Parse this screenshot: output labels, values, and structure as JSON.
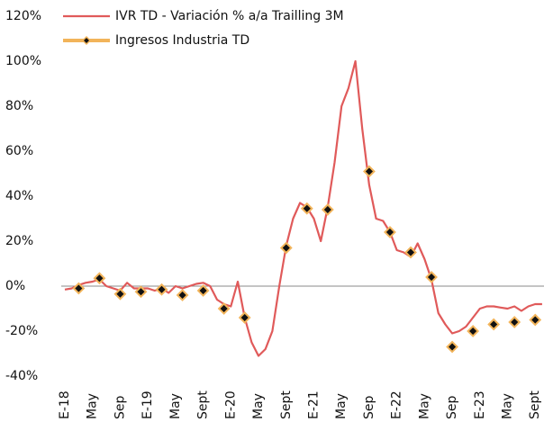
{
  "chart_data": {
    "type": "line",
    "categories": [
      "E-18",
      null,
      null,
      null,
      "May",
      null,
      null,
      null,
      "Sep",
      null,
      null,
      null,
      "E-19",
      null,
      null,
      null,
      "May",
      null,
      null,
      null,
      "Sept",
      null,
      null,
      null,
      "E-20",
      null,
      null,
      null,
      "May",
      null,
      null,
      null,
      "Sept",
      null,
      null,
      null,
      "E-21",
      null,
      null,
      null,
      "May",
      null,
      null,
      null,
      "Sep",
      null,
      null,
      null,
      "E-22",
      null,
      null,
      null,
      "May",
      null,
      null,
      null,
      "Sep",
      null,
      null,
      null,
      "E-23",
      null,
      null,
      null,
      "May",
      null,
      null,
      null,
      "Sept",
      null
    ],
    "series": [
      {
        "name": "IVR TD - Variación % a/a Trailling 3M",
        "type": "line",
        "color": "#e05a5a",
        "values": [
          -1.5,
          -1,
          0.5,
          1.5,
          2,
          3,
          0,
          -1,
          -2,
          1.5,
          -1,
          -1,
          -1,
          -2,
          -1,
          -3,
          0,
          -1,
          0,
          1,
          1.5,
          0,
          -6,
          -8,
          -9,
          2,
          -14,
          -25,
          -31,
          -28,
          -20,
          0,
          18,
          30,
          37,
          35,
          30,
          20,
          35,
          55,
          80,
          88,
          100,
          70,
          45,
          30,
          29,
          24,
          16,
          15,
          13,
          19,
          12,
          3,
          -12,
          -17,
          -21,
          -20,
          -18,
          -14,
          -10,
          -9,
          -9,
          -9.5,
          -10,
          -9,
          -11,
          -9,
          -8,
          -8
        ]
      },
      {
        "name": "Ingresos Industria TD",
        "type": "scatter",
        "color": "#f2b45a",
        "values": [
          null,
          null,
          -1,
          null,
          null,
          3.5,
          null,
          null,
          -3.5,
          null,
          null,
          -2.5,
          null,
          null,
          -1.5,
          null,
          null,
          -4,
          null,
          null,
          -2,
          null,
          null,
          -10,
          null,
          null,
          -14,
          null,
          null,
          null,
          null,
          null,
          17,
          null,
          null,
          34.5,
          null,
          null,
          34,
          null,
          null,
          null,
          null,
          null,
          51,
          null,
          null,
          24,
          null,
          null,
          15,
          null,
          null,
          4,
          null,
          null,
          -27,
          null,
          null,
          -20,
          null,
          null,
          -17,
          null,
          null,
          -16,
          null,
          null,
          -15,
          null
        ]
      }
    ],
    "ylim": [
      -40,
      120
    ],
    "yticks": [
      {
        "value": -40,
        "label": "-40%"
      },
      {
        "value": -20,
        "label": "-20%"
      },
      {
        "value": 0,
        "label": "0%"
      },
      {
        "value": 20,
        "label": "20%"
      },
      {
        "value": 40,
        "label": "40%"
      },
      {
        "value": 60,
        "label": "60%"
      },
      {
        "value": 80,
        "label": "80%"
      },
      {
        "value": 100,
        "label": "100%"
      },
      {
        "value": 120,
        "label": "120%"
      }
    ],
    "zero_line": true,
    "legend": "top"
  }
}
